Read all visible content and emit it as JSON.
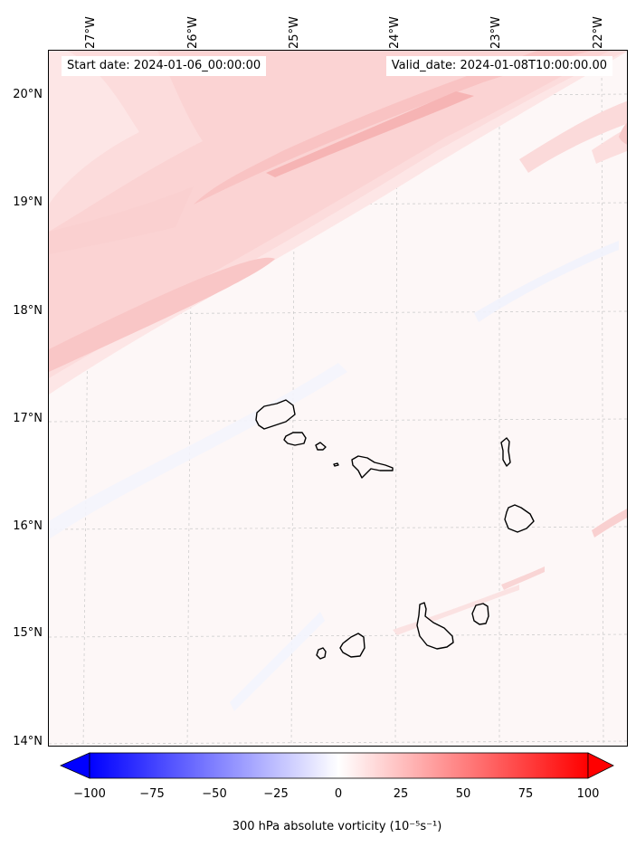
{
  "header": {
    "start_date": "Start date: 2024-01-06_00:00:00",
    "valid_date": "Valid_date: 2024-01-08T10:00:00.00"
  },
  "map": {
    "lat_ticks": [
      "20°N",
      "19°N",
      "18°N",
      "17°N",
      "16°N",
      "15°N",
      "14°N"
    ],
    "lon_ticks": [
      "27°W",
      "26°W",
      "25°W",
      "24°W",
      "23°W",
      "22°W"
    ],
    "extent": {
      "lon_min": -27.35,
      "lon_max": -21.75,
      "lat_min": 13.95,
      "lat_max": 20.45
    },
    "background_color": "#fdf7f7",
    "coastline_color": "#000000",
    "gridlines": "dashed-gray",
    "islands": [
      "Santo Antão",
      "São Vicente",
      "Santa Luzia",
      "Ilhéu Raso",
      "São Nicolau",
      "Sal",
      "Boa Vista",
      "Maio",
      "Santiago",
      "Fogo",
      "Brava"
    ]
  },
  "colorbar": {
    "ticks": [
      "−100",
      "−75",
      "−50",
      "−25",
      "0",
      "25",
      "50",
      "75",
      "100"
    ],
    "label": "300 hPa absolute vorticity (10⁻⁵s⁻¹)",
    "min": -100,
    "max": 100,
    "extend": "both",
    "colormap": "bwr",
    "low_color": "#0000ff",
    "mid_color": "#ffffff",
    "high_color": "#ff0000"
  }
}
